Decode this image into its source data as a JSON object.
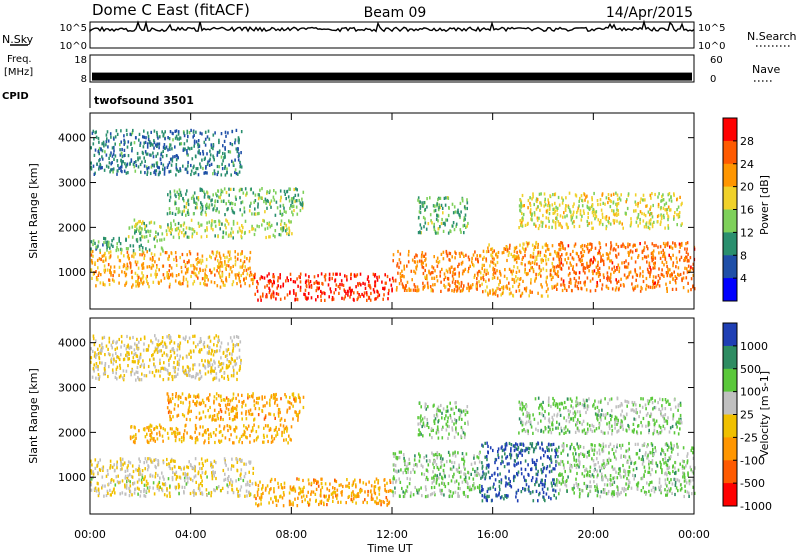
{
  "header": {
    "station": "Dome C East (fitACF)",
    "beam": "Beam 09",
    "date": "14/Apr/2015"
  },
  "top_panels": {
    "nsky_label": "N.Sky",
    "nsearch_label": "N.Search",
    "freq_label_1": "Freq.",
    "freq_label_2": "[MHz]",
    "nave_label": "Nave",
    "cpid_label": "CPID",
    "cpid_value": "twofsound 3501",
    "noise_ticks": [
      "10^5",
      "10^0"
    ],
    "freq_ticks": [
      "18",
      "8"
    ],
    "nave_ticks": [
      "60",
      "0"
    ],
    "noise_trace_level": 0.72,
    "freq_trace_level": 0.2
  },
  "colors": {
    "power_scale": [
      "#0000ff",
      "#1f4fa8",
      "#2a8f6e",
      "#7ed05a",
      "#f0d12a",
      "#ff9600",
      "#ff5a00",
      "#ff0000"
    ],
    "velocity_scale": [
      "#ff0000",
      "#ff5a00",
      "#ff9600",
      "#f0c000",
      "#c0c0c0",
      "#5ac83a",
      "#2e8c62",
      "#1f3fb4"
    ]
  },
  "chart_data": [
    {
      "type": "heatmap",
      "quantity": "power",
      "ylabel": "Slant Range [km]",
      "xlabel": "Time UT",
      "x_ticks": [
        "00:00",
        "04:00",
        "08:00",
        "12:00",
        "16:00",
        "20:00",
        "00:00"
      ],
      "xlim": [
        0,
        24
      ],
      "ylim": [
        180,
        4550
      ],
      "y_ticks": [
        1000,
        2000,
        3000,
        4000
      ],
      "colorbar": {
        "label": "Power [dB]",
        "ticks": [
          "28",
          "24",
          "20",
          "16",
          "12",
          "8",
          "4"
        ],
        "range": [
          0,
          30
        ]
      },
      "echo_regions": [
        {
          "t": [
            0.0,
            6.5
          ],
          "r": [
            700,
            1500
          ],
          "v": 20
        },
        {
          "t": [
            6.5,
            12.0
          ],
          "r": [
            400,
            1000
          ],
          "v": 27
        },
        {
          "t": [
            12.0,
            15.5
          ],
          "r": [
            600,
            1500
          ],
          "v": 22
        },
        {
          "t": [
            15.5,
            18.5
          ],
          "r": [
            500,
            1700
          ],
          "v": 20
        },
        {
          "t": [
            18.5,
            24.0
          ],
          "r": [
            600,
            1700
          ],
          "v": 23
        },
        {
          "t": [
            1.5,
            8.0
          ],
          "r": [
            1800,
            2200
          ],
          "v": 14
        },
        {
          "t": [
            3.0,
            8.5
          ],
          "r": [
            2300,
            2900
          ],
          "v": 12
        },
        {
          "t": [
            0.0,
            3.0
          ],
          "r": [
            1500,
            1800
          ],
          "v": 11
        },
        {
          "t": [
            0.0,
            6.0
          ],
          "r": [
            3200,
            4200
          ],
          "v": 8
        },
        {
          "t": [
            13.0,
            15.0
          ],
          "r": [
            1900,
            2700
          ],
          "v": 12
        },
        {
          "t": [
            17.0,
            23.5
          ],
          "r": [
            2000,
            2800
          ],
          "v": 16
        }
      ]
    },
    {
      "type": "heatmap",
      "quantity": "velocity",
      "ylabel": "Slant Range [km]",
      "xlabel": "Time UT",
      "x_ticks": [
        "00:00",
        "04:00",
        "08:00",
        "12:00",
        "16:00",
        "20:00",
        "00:00"
      ],
      "xlim": [
        0,
        24
      ],
      "ylim": [
        180,
        4550
      ],
      "y_ticks": [
        1000,
        2000,
        3000,
        4000
      ],
      "colorbar": {
        "label": "Velocity [m s-1]",
        "ticks": [
          "1000",
          "500",
          "100",
          "25",
          "-25",
          "-100",
          "-500",
          "-1000"
        ],
        "range": [
          -1000,
          1000
        ]
      },
      "echo_regions": [
        {
          "t": [
            0.0,
            6.5
          ],
          "r": [
            1050,
            1450
          ],
          "v": 0
        },
        {
          "t": [
            0.0,
            6.5
          ],
          "r": [
            600,
            1050
          ],
          "v": 70
        },
        {
          "t": [
            6.5,
            12.0
          ],
          "r": [
            400,
            1000
          ],
          "v": -300
        },
        {
          "t": [
            12.0,
            15.5
          ],
          "r": [
            600,
            1600
          ],
          "v": 300
        },
        {
          "t": [
            15.5,
            18.5
          ],
          "r": [
            500,
            1800
          ],
          "v": 800
        },
        {
          "t": [
            18.5,
            24.0
          ],
          "r": [
            600,
            1800
          ],
          "v": 300
        },
        {
          "t": [
            1.5,
            8.0
          ],
          "r": [
            1800,
            2200
          ],
          "v": -250
        },
        {
          "t": [
            3.0,
            8.5
          ],
          "r": [
            2300,
            2900
          ],
          "v": -300
        },
        {
          "t": [
            0.0,
            6.0
          ],
          "r": [
            3200,
            4200
          ],
          "v": 0
        },
        {
          "t": [
            13.0,
            15.0
          ],
          "r": [
            1900,
            2700
          ],
          "v": 300
        },
        {
          "t": [
            17.0,
            23.5
          ],
          "r": [
            2000,
            2800
          ],
          "v": 300
        }
      ]
    }
  ]
}
